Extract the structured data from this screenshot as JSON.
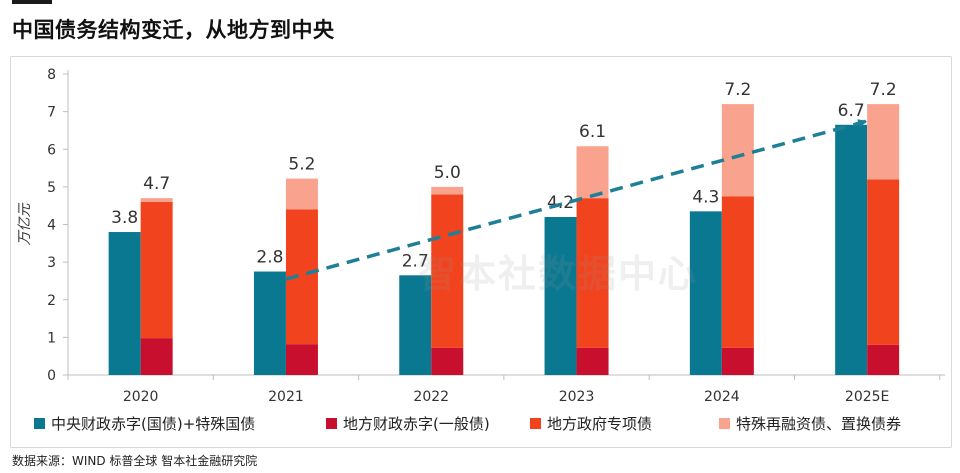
{
  "title": "中国债务结构变迁，从地方到中央",
  "source": "数据来源：WIND 标普全球 智本社金融研究院",
  "watermark": "智本社数据中心",
  "colors": {
    "central": "#0b7891",
    "local_general": "#c8102e",
    "local_special": "#f2431f",
    "refinancing": "#f9a38e",
    "trend": "#1e7f96",
    "axis": "#bfbfbf",
    "label": "#333333"
  },
  "chart_data": {
    "type": "bar",
    "categories": [
      "2020",
      "2021",
      "2022",
      "2023",
      "2024",
      "2025E"
    ],
    "ylabel": "万亿元",
    "ylim": [
      0,
      8
    ],
    "yticks": [
      "0",
      "1",
      "2",
      "3",
      "4",
      "5",
      "6",
      "7",
      "8"
    ],
    "grid": false,
    "legend_position": "bottom",
    "central": {
      "name": "中央财政赤字(国债)+特殊国债",
      "values": [
        3.8,
        2.75,
        2.65,
        4.2,
        4.35,
        6.65
      ],
      "labels": [
        "3.8",
        "2.8",
        "2.7",
        "4.2",
        "4.3",
        "6.7"
      ]
    },
    "local_stack": [
      {
        "name": "地方财政赤字(一般债)",
        "values": [
          0.98,
          0.82,
          0.72,
          0.72,
          0.72,
          0.8
        ]
      },
      {
        "name": "地方政府专项债",
        "values": [
          3.62,
          3.58,
          4.08,
          3.98,
          4.03,
          4.4
        ]
      },
      {
        "name": "特殊再融资债、置换债券",
        "values": [
          0.1,
          0.82,
          0.2,
          1.38,
          2.45,
          2.0
        ]
      }
    ],
    "local_totals": [
      "4.7",
      "5.2",
      "5.0",
      "6.1",
      "7.2",
      "7.2"
    ],
    "trend": {
      "from": {
        "category": "2021",
        "value": 2.55
      },
      "to": {
        "category": "2025E",
        "value": 6.75
      }
    }
  }
}
